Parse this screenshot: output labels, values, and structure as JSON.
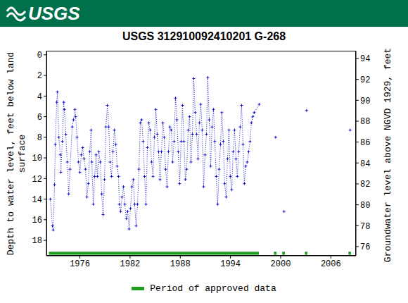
{
  "header": {
    "logo_text": "USGS"
  },
  "chart_data": {
    "type": "line",
    "title": "USGS 312910092410201 G-268",
    "x_label": null,
    "y_label": "Depth to water level, feet below land surface",
    "y2_label": "Groundwater level above NGVD 1929, feet",
    "xlim": [
      1972,
      2009
    ],
    "xticks": [
      1976,
      1982,
      1988,
      1994,
      2000,
      2006
    ],
    "ylim": [
      19.5,
      -0.4
    ],
    "yticks": [
      0,
      2,
      4,
      6,
      8,
      10,
      12,
      14,
      16,
      18
    ],
    "y2lim": [
      75.12,
      94.74
    ],
    "y2ticks": [
      76,
      78,
      80,
      82,
      84,
      86,
      88,
      90,
      92,
      94
    ],
    "grid": false,
    "x": [
      1972.47,
      1972.72,
      1972.81,
      1972.97,
      1973.06,
      1973.23,
      1973.31,
      1973.48,
      1973.65,
      1973.73,
      1973.9,
      1974.07,
      1974.15,
      1974.32,
      1974.49,
      1974.66,
      1974.82,
      1975.08,
      1975.24,
      1975.41,
      1975.5,
      1975.66,
      1975.83,
      1976.0,
      1976.17,
      1976.34,
      1976.5,
      1976.67,
      1976.84,
      1977.01,
      1977.18,
      1977.34,
      1977.43,
      1977.6,
      1977.76,
      1977.93,
      1978.1,
      1978.27,
      1978.44,
      1978.61,
      1978.77,
      1978.94,
      1979.11,
      1979.28,
      1979.45,
      1979.61,
      1979.78,
      1979.95,
      1980.12,
      1980.29,
      1980.45,
      1980.62,
      1980.71,
      1980.87,
      1981.04,
      1981.21,
      1981.38,
      1981.55,
      1981.71,
      1981.88,
      1982.05,
      1982.22,
      1982.39,
      1982.55,
      1982.72,
      1982.89,
      1983.06,
      1983.23,
      1983.39,
      1983.56,
      1983.73,
      1983.9,
      1984.07,
      1984.24,
      1984.4,
      1984.57,
      1984.74,
      1984.91,
      1985.08,
      1985.24,
      1985.41,
      1985.58,
      1985.75,
      1985.92,
      1986.08,
      1986.25,
      1986.42,
      1986.59,
      1986.76,
      1986.92,
      1987.09,
      1987.26,
      1987.43,
      1987.6,
      1987.76,
      1987.93,
      1988.1,
      1988.27,
      1988.44,
      1988.61,
      1988.77,
      1988.94,
      1989.11,
      1989.28,
      1989.45,
      1989.61,
      1989.78,
      1989.95,
      1990.12,
      1990.29,
      1990.45,
      1990.62,
      1990.79,
      1990.96,
      1991.13,
      1991.29,
      1991.46,
      1991.63,
      1991.8,
      1991.97,
      1992.13,
      1992.3,
      1992.47,
      1992.64,
      1992.81,
      1992.97,
      1993.14,
      1993.31,
      1993.48,
      1993.65,
      1993.82,
      1993.98,
      1994.15,
      1994.32,
      1994.49,
      1994.66,
      1994.82,
      1994.99,
      1995.16,
      1995.33,
      1995.5,
      1995.66,
      1995.83,
      1996.0,
      1996.17,
      1996.34,
      1996.5,
      1996.67,
      1996.84,
      1997.43,
      1998.4,
      1999.4,
      1999.9,
      2000.4,
      2001.7,
      2003.1,
      2005.7,
      2008.3
    ],
    "series": [
      {
        "color": "#1414d2",
        "marker": "plus",
        "line_style": "dotted",
        "values": [
          14.0,
          16.6,
          17.0,
          12.6,
          8.7,
          4.6,
          3.6,
          8.0,
          9.7,
          11.4,
          8.4,
          4.6,
          5.3,
          7.7,
          10.4,
          13.5,
          11.1,
          7.0,
          6.3,
          5.3,
          6.0,
          8.0,
          10.4,
          11.4,
          9.7,
          9.0,
          10.1,
          11.1,
          13.8,
          12.5,
          9.4,
          7.3,
          10.4,
          14.5,
          11.8,
          9.7,
          11.8,
          9.4,
          10.4,
          13.5,
          15.5,
          12.1,
          7.0,
          4.9,
          7.0,
          10.4,
          11.8,
          9.4,
          7.3,
          8.7,
          10.8,
          11.8,
          14.5,
          15.2,
          13.8,
          12.8,
          14.5,
          15.9,
          15.2,
          16.9,
          14.9,
          12.8,
          12.1,
          14.5,
          16.6,
          14.5,
          11.1,
          6.6,
          6.3,
          8.4,
          11.8,
          14.5,
          9.0,
          6.6,
          7.3,
          10.4,
          11.8,
          8.0,
          5.3,
          7.7,
          9.4,
          12.1,
          9.4,
          6.6,
          8.0,
          11.1,
          12.8,
          9.4,
          7.0,
          7.3,
          10.4,
          8.4,
          4.2,
          6.3,
          9.4,
          12.5,
          8.4,
          4.9,
          8.4,
          12.1,
          11.1,
          7.3,
          6.0,
          10.4,
          7.7,
          2.3,
          5.6,
          7.7,
          10.1,
          6.6,
          4.8,
          7.3,
          12.8,
          9.7,
          7.7,
          2.2,
          6.3,
          10.8,
          7.0,
          5.3,
          8.4,
          11.8,
          14.5,
          11.1,
          8.7,
          5.6,
          8.4,
          12.5,
          13.8,
          10.1,
          7.3,
          11.8,
          13.1,
          9.4,
          7.3,
          10.1,
          11.8,
          9.4,
          7.0,
          4.9,
          8.7,
          12.5,
          10.8,
          10.4,
          9.4,
          8.4,
          6.6,
          6.0,
          5.6,
          4.8,
          null,
          8.0,
          null,
          15.2,
          null,
          5.4,
          null,
          7.3
        ]
      }
    ],
    "approved_periods": {
      "name": "Period of approved data",
      "color": "#1e9e1e",
      "periods": [
        [
          1972.3,
          1997.4
        ],
        [
          1999.2,
          1999.5
        ],
        [
          2000.2,
          2000.5
        ],
        [
          2002.9,
          2003.2
        ],
        [
          2008.1,
          2008.4
        ]
      ]
    }
  }
}
